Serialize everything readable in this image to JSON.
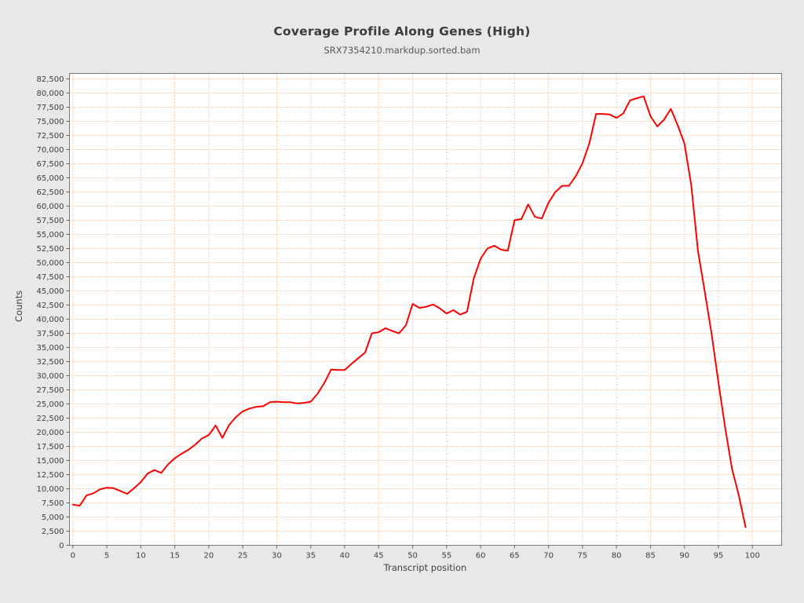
{
  "chart_data": {
    "type": "line",
    "title": "Coverage Profile Along Genes (High)",
    "subtitle": "SRX7354210.markdup.sorted.bam",
    "xlabel": "Transcript position",
    "ylabel": "Counts",
    "legend": "none",
    "grid": "on",
    "x_ticks": [
      0,
      5,
      10,
      15,
      20,
      25,
      30,
      35,
      40,
      45,
      50,
      55,
      60,
      65,
      70,
      75,
      80,
      85,
      90,
      95,
      100
    ],
    "y_tick_interval": 2500,
    "y_tick_max": 82500,
    "xlim": [
      -0.5,
      104.3
    ],
    "ylim": [
      0,
      83470
    ],
    "x_start": 0,
    "x_step": 1,
    "series": [
      {
        "name": "coverage",
        "values": [
          7200,
          7000,
          8800,
          9200,
          9900,
          10200,
          10100,
          9600,
          9100,
          10100,
          11200,
          12700,
          13300,
          12800,
          14300,
          15400,
          16200,
          16900,
          17800,
          18900,
          19500,
          21200,
          19000,
          21300,
          22700,
          23700,
          24200,
          24500,
          24600,
          25300,
          25400,
          25300,
          25300,
          25100,
          25200,
          25400,
          26800,
          28700,
          31100,
          31000,
          31000,
          32100,
          33100,
          34100,
          37500,
          37700,
          38400,
          37900,
          37500,
          38900,
          42700,
          42000,
          42200,
          42600,
          41900,
          41000,
          41600,
          40800,
          41300,
          47200,
          50700,
          52500,
          53000,
          52300,
          52100,
          57500,
          57700,
          60300,
          58100,
          57800,
          60600,
          62500,
          63600,
          63600,
          65300,
          67600,
          71100,
          76300,
          76300,
          76200,
          75600,
          76400,
          78700,
          79100,
          79400,
          75900,
          74100,
          75300,
          77200,
          74300,
          71100,
          63700,
          52000,
          44800,
          37300,
          28800,
          20700,
          13500,
          8800,
          3200
        ]
      }
    ],
    "colors": {
      "line": "#fe0000",
      "grid": "#f6c9a4",
      "plot_background": "#ffffff",
      "page_background": "#e8e8e8",
      "frame": "#7a7a7a",
      "tick": "#636363",
      "tick_label": "#3f3f3f"
    }
  }
}
